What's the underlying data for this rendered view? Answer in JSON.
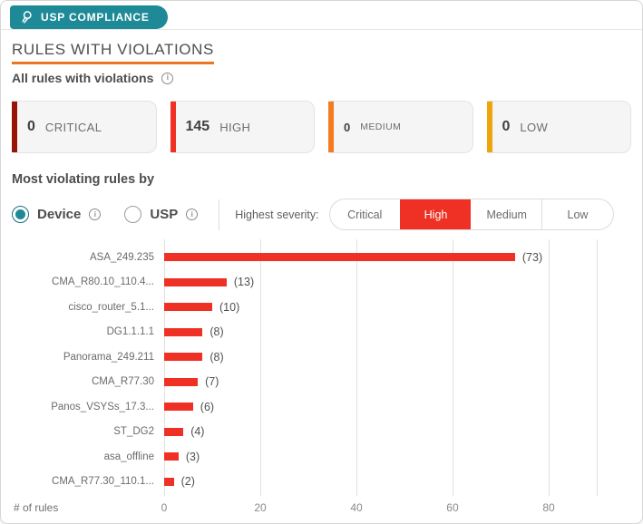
{
  "panel": {
    "badge_label": "USP COMPLIANCE",
    "badge_icon": "award-ribbon-icon",
    "badge_color": "#1e8a98"
  },
  "header": {
    "title": "RULES WITH VIOLATIONS",
    "title_underline_color": "#e87622",
    "subtitle": "All rules with violations",
    "info_icon_glyph": "i"
  },
  "severity_cards": [
    {
      "value": "0",
      "label": "CRITICAL",
      "color": "#981407"
    },
    {
      "value": "145",
      "label": "HIGH",
      "color": "#ee3124"
    },
    {
      "value": "0",
      "label": "MEDIUM",
      "color": "#f47b20"
    },
    {
      "value": "0",
      "label": "LOW",
      "color": "#eea50c"
    }
  ],
  "filters": {
    "section_title": "Most violating rules by",
    "radios": [
      {
        "label": "Device",
        "selected": true,
        "info_icon_glyph": "i"
      },
      {
        "label": "USP",
        "selected": false,
        "info_icon_glyph": "i"
      }
    ],
    "severity_filter_label": "Highest severity:",
    "segments": [
      {
        "label": "Critical",
        "selected": false
      },
      {
        "label": "High",
        "selected": true
      },
      {
        "label": "Medium",
        "selected": false
      },
      {
        "label": "Low",
        "selected": false
      }
    ],
    "selected_segment_color": "#ee3124"
  },
  "chart_data": {
    "type": "bar",
    "orientation": "horizontal",
    "categories": [
      "ASA_249.235",
      "CMA_R80.10_110.4...",
      "cisco_router_5.1...",
      "DG1.1.1.1",
      "Panorama_249.211",
      "CMA_R77.30",
      "Panos_VSYSs_17.3...",
      "ST_DG2",
      "asa_offline",
      "CMA_R77.30_110.1..."
    ],
    "values": [
      73,
      13,
      10,
      8,
      8,
      7,
      6,
      4,
      3,
      2
    ],
    "value_labels": [
      "(73)",
      "(13)",
      "(10)",
      "(8)",
      "(8)",
      "(7)",
      "(6)",
      "(4)",
      "(3)",
      "(2)"
    ],
    "xlabel": "# of rules",
    "xticks": [
      0,
      20,
      40,
      60,
      80
    ],
    "xlim": [
      0,
      90
    ],
    "bar_color": "#ee3124",
    "grid": "vertical",
    "legend": "none"
  }
}
